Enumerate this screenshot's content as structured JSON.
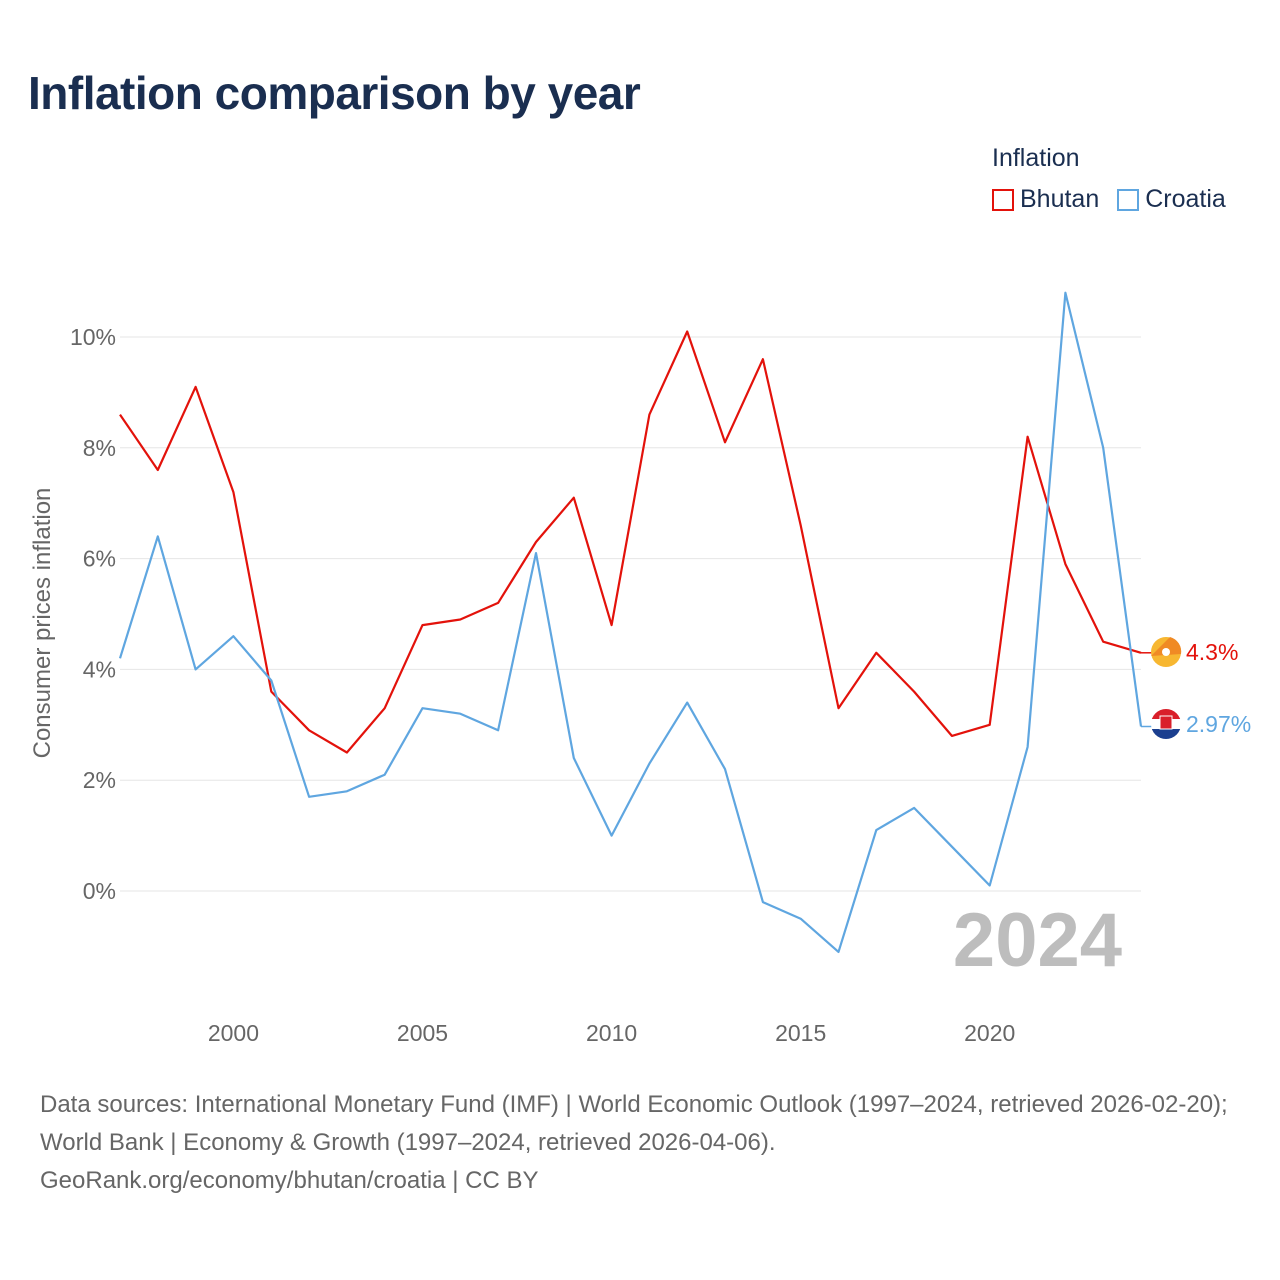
{
  "title": "Inflation comparison by year",
  "legend": {
    "title": "Inflation",
    "items": [
      {
        "label": "Bhutan",
        "color": "#e3120b"
      },
      {
        "label": "Croatia",
        "color": "#5fa6e0"
      }
    ]
  },
  "chart_data": {
    "type": "line",
    "title": "Inflation comparison by year",
    "xlabel": "",
    "ylabel": "Consumer prices inflation",
    "xlim": [
      1997,
      2024
    ],
    "ylim": [
      -2,
      11
    ],
    "y_ticks": [
      0,
      2,
      4,
      6,
      8,
      10
    ],
    "y_tick_labels": [
      "0%",
      "2%",
      "4%",
      "6%",
      "8%",
      "10%"
    ],
    "x_ticks": [
      2000,
      2005,
      2010,
      2015,
      2020
    ],
    "x_tick_labels": [
      "2000",
      "2005",
      "2010",
      "2015",
      "2020"
    ],
    "year_watermark": "2024",
    "x": [
      1997,
      1998,
      1999,
      2000,
      2001,
      2002,
      2003,
      2004,
      2005,
      2006,
      2007,
      2008,
      2009,
      2010,
      2011,
      2012,
      2013,
      2014,
      2015,
      2016,
      2017,
      2018,
      2019,
      2020,
      2021,
      2022,
      2023,
      2024
    ],
    "series": [
      {
        "name": "Bhutan",
        "color": "#e3120b",
        "end_label": "4.3%",
        "values": [
          8.6,
          7.6,
          9.1,
          7.2,
          3.6,
          2.9,
          2.5,
          3.3,
          4.8,
          4.9,
          5.2,
          6.3,
          7.1,
          4.8,
          8.6,
          10.1,
          8.1,
          9.6,
          6.6,
          3.3,
          4.3,
          3.6,
          2.8,
          3.0,
          8.2,
          5.9,
          4.5,
          4.3
        ]
      },
      {
        "name": "Croatia",
        "color": "#5fa6e0",
        "end_label": "2.97%",
        "values": [
          4.2,
          6.4,
          4.0,
          4.6,
          3.8,
          1.7,
          1.8,
          2.1,
          3.3,
          3.2,
          2.9,
          6.1,
          2.4,
          1.0,
          2.3,
          3.4,
          2.2,
          -0.2,
          -0.5,
          -1.1,
          1.1,
          1.5,
          0.8,
          0.1,
          2.6,
          10.8,
          8.0,
          2.97
        ]
      }
    ]
  },
  "footer": {
    "sources": "Data sources: International Monetary Fund (IMF) | World Economic Outlook (1997–2024, retrieved 2026-02-20); World Bank | Economy & Growth (1997–2024, retrieved 2026-04-06).",
    "url": "GeoRank.org/economy/bhutan/croatia | CC BY"
  }
}
